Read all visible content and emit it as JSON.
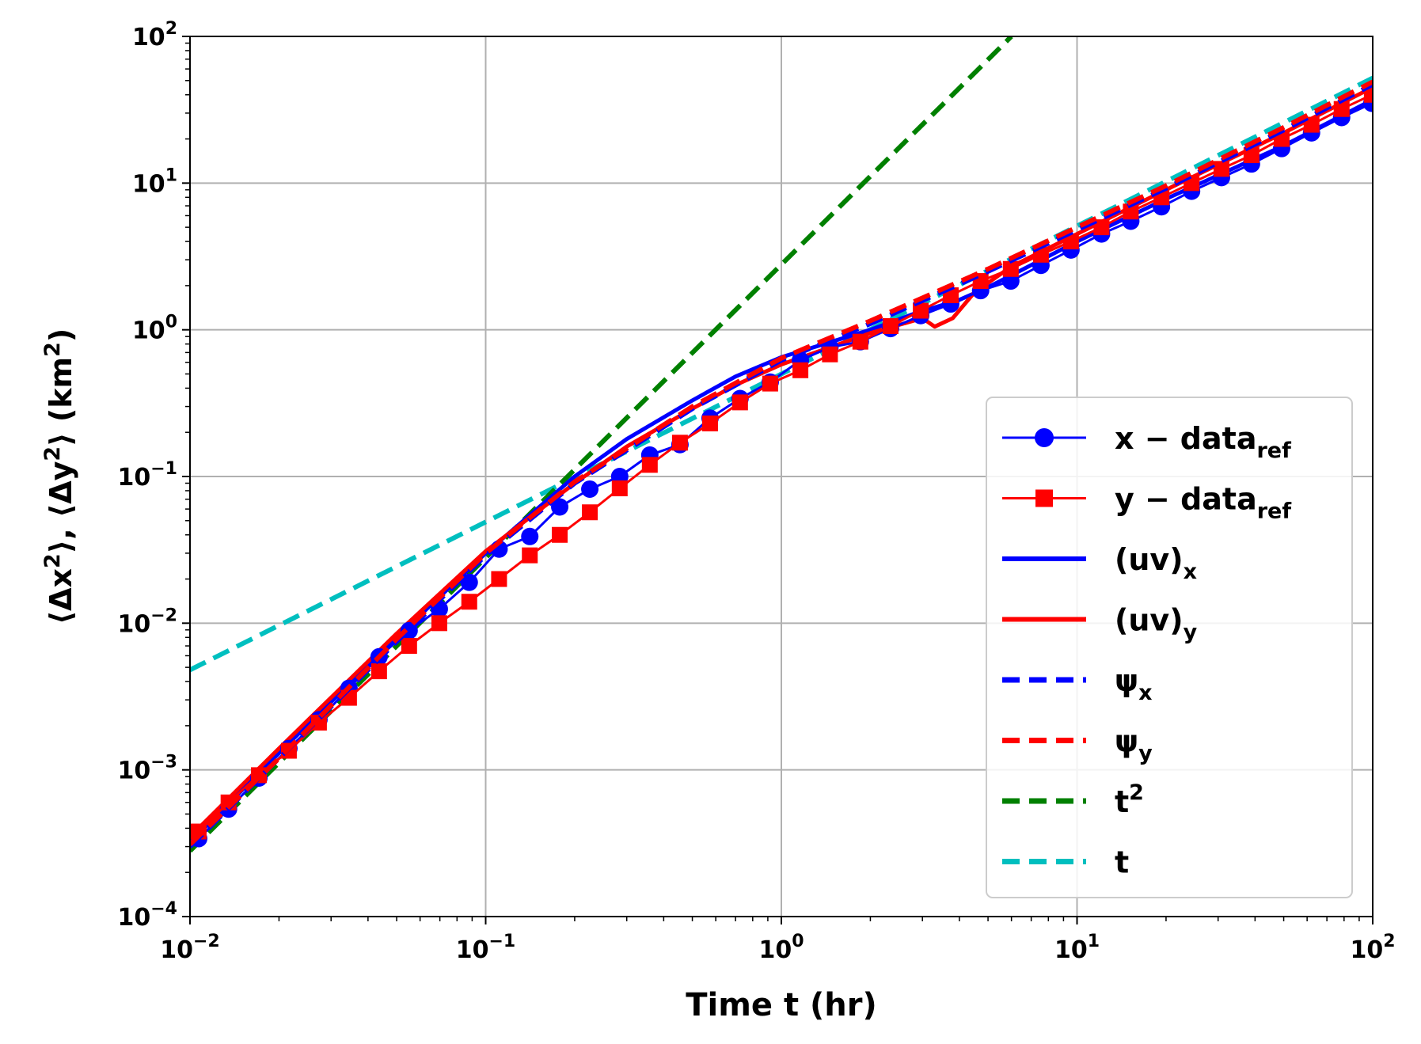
{
  "chart_data": {
    "type": "line",
    "scale": "log-log",
    "title": "",
    "xlabel": "Time t (hr)",
    "ylabel": {
      "parts": [
        "⟨Δx",
        "2",
        "⟩, ⟨Δy",
        "2",
        "⟩ (km",
        "2",
        ")"
      ]
    },
    "xlim": [
      0.01,
      100
    ],
    "ylim": [
      0.0001,
      100
    ],
    "grid": true,
    "x_ticks": [
      {
        "base": "10",
        "exp": "−2",
        "value": 0.01
      },
      {
        "base": "10",
        "exp": "−1",
        "value": 0.1
      },
      {
        "base": "10",
        "exp": "0",
        "value": 1
      },
      {
        "base": "10",
        "exp": "1",
        "value": 10
      },
      {
        "base": "10",
        "exp": "2",
        "value": 100
      }
    ],
    "y_ticks": [
      {
        "base": "10",
        "exp": "−4",
        "value": 0.0001
      },
      {
        "base": "10",
        "exp": "−3",
        "value": 0.001
      },
      {
        "base": "10",
        "exp": "−2",
        "value": 0.01
      },
      {
        "base": "10",
        "exp": "−1",
        "value": 0.1
      },
      {
        "base": "10",
        "exp": "0",
        "value": 1
      },
      {
        "base": "10",
        "exp": "1",
        "value": 10
      },
      {
        "base": "10",
        "exp": "2",
        "value": 100
      }
    ],
    "legend_position": "lower-right",
    "series": [
      {
        "key": "x_data_ref",
        "label_main": "x − data",
        "label_sub": "ref",
        "label_sup": "",
        "color": "#0000ff",
        "style": "solid",
        "marker": "circle",
        "x": [
          0.0107,
          0.0135,
          0.0171,
          0.0216,
          0.0273,
          0.0345,
          0.0436,
          0.0551,
          0.0697,
          0.088,
          0.111,
          0.141,
          0.178,
          0.225,
          0.284,
          0.359,
          0.454,
          0.574,
          0.725,
          0.917,
          1.16,
          1.46,
          1.85,
          2.34,
          2.96,
          3.74,
          4.72,
          5.97,
          7.55,
          9.54,
          12.1,
          15.2,
          19.3,
          24.4,
          30.8,
          38.9,
          49.2,
          62.1,
          78.5,
          99.3
        ],
        "y": [
          0.00034,
          0.00054,
          0.00088,
          0.0014,
          0.0022,
          0.0036,
          0.0059,
          0.0089,
          0.0125,
          0.019,
          0.032,
          0.039,
          0.062,
          0.082,
          0.1,
          0.14,
          0.165,
          0.25,
          0.34,
          0.44,
          0.62,
          0.76,
          0.83,
          1.02,
          1.25,
          1.5,
          1.85,
          2.15,
          2.75,
          3.5,
          4.5,
          5.5,
          6.9,
          8.8,
          10.9,
          13.5,
          17.2,
          22.0,
          28.0,
          35.0
        ]
      },
      {
        "key": "y_data_ref",
        "label_main": "y − data",
        "label_sub": "ref",
        "label_sup": "",
        "color": "#ff0000",
        "style": "solid",
        "marker": "square",
        "x": [
          0.0107,
          0.0135,
          0.0171,
          0.0216,
          0.0273,
          0.0345,
          0.0436,
          0.0551,
          0.0697,
          0.088,
          0.111,
          0.141,
          0.178,
          0.225,
          0.284,
          0.359,
          0.454,
          0.574,
          0.725,
          0.917,
          1.16,
          1.46,
          1.85,
          2.34,
          2.96,
          3.74,
          4.72,
          5.97,
          7.55,
          9.54,
          12.1,
          15.2,
          19.3,
          24.4,
          30.8,
          38.9,
          49.2,
          62.1,
          78.5,
          99.3
        ],
        "y": [
          0.00038,
          0.0006,
          0.00092,
          0.00135,
          0.0021,
          0.0031,
          0.0047,
          0.007,
          0.01,
          0.014,
          0.02,
          0.029,
          0.04,
          0.057,
          0.083,
          0.12,
          0.17,
          0.23,
          0.32,
          0.43,
          0.53,
          0.68,
          0.83,
          1.06,
          1.35,
          1.72,
          2.15,
          2.6,
          3.25,
          4.0,
          5.0,
          6.4,
          8.0,
          10.0,
          12.5,
          15.5,
          20.0,
          25.0,
          32.0,
          40.0
        ]
      },
      {
        "key": "uv_x",
        "label_main": "(uv)",
        "label_sub": "x",
        "label_sup": "",
        "color": "#0000ff",
        "style": "solid",
        "marker": "none",
        "x": [
          0.01,
          0.02,
          0.05,
          0.1,
          0.2,
          0.3,
          0.5,
          0.7,
          1,
          2,
          3,
          3.3,
          4,
          5,
          10,
          20,
          50,
          100
        ],
        "y": [
          0.00032,
          0.0013,
          0.008,
          0.03,
          0.1,
          0.18,
          0.33,
          0.48,
          0.65,
          1.0,
          1.35,
          1.42,
          1.6,
          1.95,
          4.0,
          7.8,
          18.0,
          37.0
        ]
      },
      {
        "key": "uv_y",
        "label_main": "(uv)",
        "label_sub": "y",
        "label_sup": "",
        "color": "#ff0000",
        "style": "solid",
        "marker": "none",
        "x": [
          0.01,
          0.02,
          0.05,
          0.1,
          0.2,
          0.3,
          0.5,
          0.7,
          1,
          2,
          3,
          3.3,
          3.8,
          4.5,
          6,
          10,
          20,
          50,
          100
        ],
        "y": [
          0.00035,
          0.0014,
          0.0085,
          0.031,
          0.09,
          0.16,
          0.29,
          0.42,
          0.58,
          0.95,
          1.2,
          1.05,
          1.2,
          1.8,
          2.7,
          4.5,
          9.0,
          22.0,
          45.0
        ]
      },
      {
        "key": "psi_x",
        "label_main": "ψ",
        "label_sub": "x",
        "label_sup": "",
        "color": "#0000ff",
        "style": "dashed",
        "marker": "none",
        "x": [
          0.01,
          0.02,
          0.05,
          0.1,
          0.2,
          0.5,
          1,
          2,
          5,
          10,
          20,
          50,
          100
        ],
        "y": [
          0.0003,
          0.0012,
          0.0075,
          0.029,
          0.09,
          0.29,
          0.62,
          1.1,
          2.5,
          4.8,
          9.2,
          23.0,
          47.0
        ]
      },
      {
        "key": "psi_y",
        "label_main": "ψ",
        "label_sub": "y",
        "label_sup": "",
        "color": "#ff0000",
        "style": "dashed",
        "marker": "none",
        "x": [
          0.01,
          0.02,
          0.05,
          0.1,
          0.2,
          0.5,
          1,
          2,
          5,
          10,
          20,
          50,
          100
        ],
        "y": [
          0.00031,
          0.0012,
          0.0078,
          0.03,
          0.092,
          0.3,
          0.64,
          1.15,
          2.6,
          5.0,
          9.6,
          24.0,
          49.0
        ]
      },
      {
        "key": "t2",
        "label_main": "t",
        "label_sub": "",
        "label_sup": "2",
        "color": "#008000",
        "style": "dashed",
        "marker": "none",
        "x": [
          0.01,
          6.0
        ],
        "y": [
          0.00028,
          100.0
        ]
      },
      {
        "key": "t",
        "label_main": "t",
        "label_sub": "",
        "label_sup": "",
        "color": "#00bfbf",
        "style": "dashed",
        "marker": "none",
        "x": [
          0.01,
          100
        ],
        "y": [
          0.0048,
          52.0
        ]
      }
    ]
  }
}
